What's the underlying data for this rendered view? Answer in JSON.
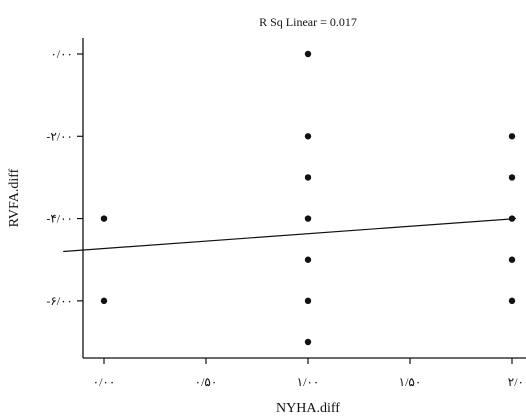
{
  "chart_data": {
    "type": "scatter",
    "title": "R Sq Linear = 0.017",
    "xlabel": "NYHA.diff",
    "ylabel": "RVFA.diff",
    "xlim": [
      -0.2,
      2.02
    ],
    "ylim": [
      -7.0,
      0.0
    ],
    "xticks": [
      0.0,
      0.5,
      1.0,
      1.5,
      2.0
    ],
    "xtick_labels": [
      "۰/۰۰",
      "۰/۵۰",
      "۱/۰۰",
      "۱/۵۰",
      "۲/۰"
    ],
    "yticks": [
      0.0,
      -2.0,
      -4.0,
      -6.0
    ],
    "ytick_labels": [
      "۰/۰۰",
      "-۲/۰۰",
      "-۴/۰۰",
      "-۶/۰۰"
    ],
    "points": [
      {
        "x": 0.0,
        "y": -4.0
      },
      {
        "x": 0.0,
        "y": -6.0
      },
      {
        "x": 1.0,
        "y": 0.0
      },
      {
        "x": 1.0,
        "y": -2.0
      },
      {
        "x": 1.0,
        "y": -3.0
      },
      {
        "x": 1.0,
        "y": -4.0
      },
      {
        "x": 1.0,
        "y": -5.0
      },
      {
        "x": 1.0,
        "y": -6.0
      },
      {
        "x": 1.0,
        "y": -7.0
      },
      {
        "x": 2.0,
        "y": -2.0
      },
      {
        "x": 2.0,
        "y": -3.0
      },
      {
        "x": 2.0,
        "y": -4.0
      },
      {
        "x": 2.0,
        "y": -5.0
      },
      {
        "x": 2.0,
        "y": -6.0
      }
    ],
    "fit_line": {
      "x": [
        -0.2,
        2.02
      ],
      "y": [
        -4.8,
        -4.0
      ]
    },
    "grid": false,
    "legend": "none",
    "colors": {
      "points": "#111111",
      "line": "#111111",
      "axes": "#111111"
    }
  }
}
